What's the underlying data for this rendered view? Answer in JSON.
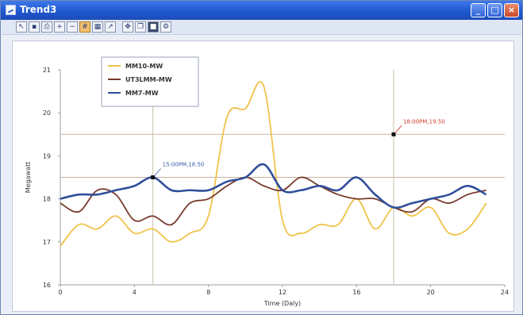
{
  "window": {
    "title": "Trend3"
  },
  "toolbar": {
    "buttons": [
      {
        "name": "cursor-tool-button",
        "glyph": "↖"
      },
      {
        "name": "save-button",
        "glyph": "▪"
      },
      {
        "name": "print-button",
        "glyph": "⎙"
      },
      {
        "name": "zoom-in-button",
        "glyph": "+"
      },
      {
        "name": "zoom-out-button",
        "glyph": "−"
      },
      {
        "name": "grid-button",
        "glyph": "#"
      },
      {
        "name": "table-button",
        "glyph": "▦"
      },
      {
        "name": "export-button",
        "glyph": "↗"
      },
      {
        "name": "pan-button",
        "glyph": "✥"
      },
      {
        "name": "copy-button",
        "glyph": "❐"
      },
      {
        "name": "marker-button",
        "glyph": "■"
      },
      {
        "name": "settings-button",
        "glyph": "⚙"
      }
    ],
    "active_index": 5,
    "dark_index": 10
  },
  "colors": {
    "series1": "#f0c24a",
    "series2": "#7a3a2e",
    "series3": "#2f4f9a",
    "crosshair_h": "#c9b3a0",
    "crosshair_v": "#c8bfa8",
    "marker1_label": "#3a5bb0",
    "marker2_label": "#d23b2b"
  },
  "chart_data": {
    "type": "line",
    "xlabel": "Time (Daly)",
    "ylabel": "Megawatt",
    "xlim": [
      0,
      24
    ],
    "ylim": [
      16,
      21
    ],
    "xticks": [
      "0",
      "4",
      "8",
      "12",
      "16",
      "20",
      "24"
    ],
    "yticks": [
      "16",
      "17",
      "18",
      "19",
      "20",
      "21"
    ],
    "grid": false,
    "legend_position": "top-left",
    "series": [
      {
        "name": "MM10-MW",
        "style": "series1",
        "x": [
          0,
          1,
          2,
          3,
          4,
          5,
          6,
          7,
          8,
          9,
          10,
          11,
          12,
          13,
          14,
          15,
          16,
          17,
          18,
          19,
          20,
          21,
          22,
          23
        ],
        "y": [
          16.9,
          17.4,
          17.3,
          17.6,
          17.2,
          17.3,
          17.0,
          17.2,
          17.6,
          19.9,
          20.1,
          20.6,
          17.5,
          17.2,
          17.4,
          17.4,
          18.0,
          17.3,
          17.8,
          17.6,
          17.8,
          17.2,
          17.3,
          17.9
        ]
      },
      {
        "name": "UT3LMM-MW",
        "style": "series2",
        "x": [
          0,
          1,
          2,
          3,
          4,
          5,
          6,
          7,
          8,
          9,
          10,
          11,
          12,
          13,
          14,
          15,
          16,
          17,
          18,
          19,
          20,
          21,
          22,
          23
        ],
        "y": [
          17.9,
          17.7,
          18.2,
          18.1,
          17.5,
          17.6,
          17.4,
          17.9,
          18.0,
          18.3,
          18.5,
          18.3,
          18.2,
          18.5,
          18.3,
          18.1,
          18.0,
          18.0,
          17.8,
          17.7,
          18.0,
          17.9,
          18.1,
          18.2
        ]
      },
      {
        "name": "MM7-MW",
        "style": "series3",
        "x": [
          0,
          1,
          2,
          3,
          4,
          5,
          6,
          7,
          8,
          9,
          10,
          11,
          12,
          13,
          14,
          15,
          16,
          17,
          18,
          19,
          20,
          21,
          22,
          23
        ],
        "y": [
          18.0,
          18.1,
          18.1,
          18.2,
          18.3,
          18.5,
          18.2,
          18.2,
          18.2,
          18.4,
          18.5,
          18.8,
          18.2,
          18.2,
          18.3,
          18.2,
          18.5,
          18.1,
          17.8,
          17.9,
          18.0,
          18.1,
          18.3,
          18.1
        ]
      }
    ],
    "crosshairs": [
      {
        "x": 5,
        "y": 18.5,
        "label": "15:00PM,18.50",
        "color": "marker1_label"
      },
      {
        "x": 18,
        "y": 19.5,
        "label": "18:00PM,19.50",
        "color": "marker2_label"
      }
    ]
  }
}
